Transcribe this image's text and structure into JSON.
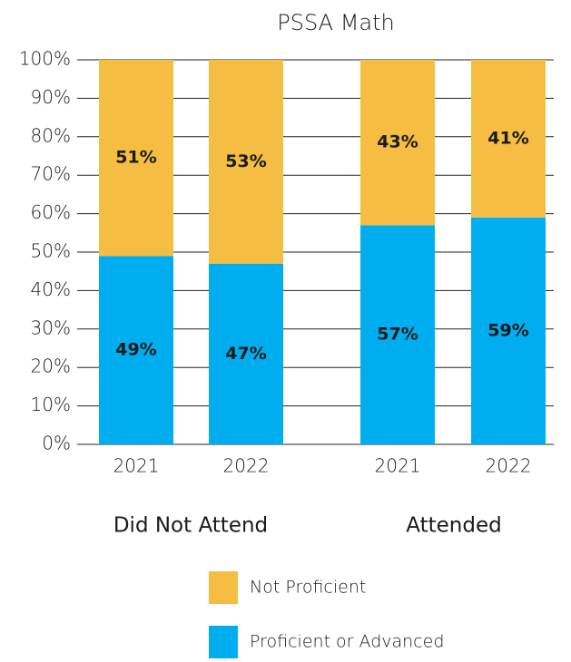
{
  "chart_data": {
    "type": "stacked_bar",
    "title": "PSSA Math",
    "categories": [
      "2021",
      "2022",
      "2021",
      "2022"
    ],
    "groups": [
      "Did Not Attend",
      "Attended"
    ],
    "series": [
      {
        "name": "Proficient or Advanced",
        "color": "#00aeef",
        "values": [
          49,
          47,
          57,
          59
        ],
        "value_labels": [
          "49%",
          "47%",
          "57%",
          "59%"
        ]
      },
      {
        "name": "Not Proficient",
        "color": "#f5bd41",
        "values": [
          51,
          53,
          43,
          41
        ],
        "value_labels": [
          "51%",
          "53%",
          "43%",
          "41%"
        ]
      }
    ],
    "ylim": [
      0,
      100
    ],
    "yticks": [
      {
        "value": 0,
        "label": "0%"
      },
      {
        "value": 10,
        "label": "10%"
      },
      {
        "value": 20,
        "label": "20%"
      },
      {
        "value": 30,
        "label": "30%"
      },
      {
        "value": 40,
        "label": "40%"
      },
      {
        "value": 50,
        "label": "50%"
      },
      {
        "value": 60,
        "label": "60%"
      },
      {
        "value": 70,
        "label": "70%"
      },
      {
        "value": 80,
        "label": "80%"
      },
      {
        "value": 90,
        "label": "90%"
      },
      {
        "value": 100,
        "label": "100%"
      }
    ],
    "grid": true
  }
}
